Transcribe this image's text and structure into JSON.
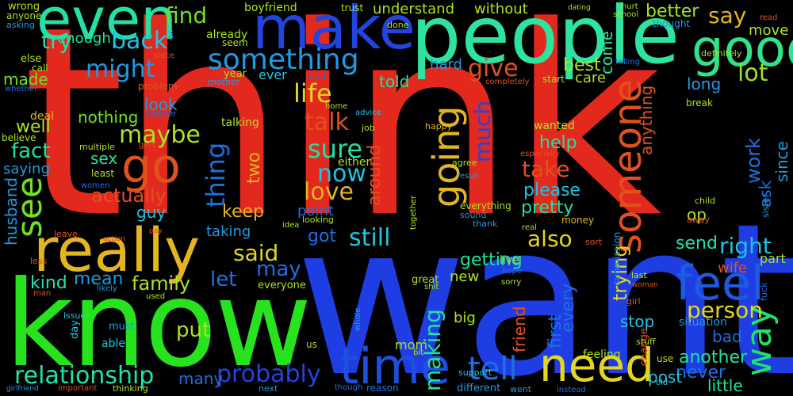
{
  "words": [
    {
      "text": "think",
      "color": "#e3281e"
    },
    {
      "text": "want",
      "color": "#1e3ee3"
    },
    {
      "text": "know",
      "color": "#27e31e"
    },
    {
      "text": "people",
      "color": "#2ee3a0"
    },
    {
      "text": "even",
      "color": "#22e0a6"
    },
    {
      "text": "make",
      "color": "#2244e0"
    },
    {
      "text": "good",
      "color": "#2ee38a"
    },
    {
      "text": "really",
      "color": "#e3b51e"
    },
    {
      "text": "go",
      "color": "#e3501e"
    },
    {
      "text": "time",
      "color": "#1e4fe3"
    },
    {
      "text": "need",
      "color": "#e3d71e"
    },
    {
      "text": "feel",
      "color": "#1e5be3"
    },
    {
      "text": "going",
      "color": "#e3b51e"
    },
    {
      "text": "someone",
      "color": "#e3501e"
    },
    {
      "text": "something",
      "color": "#1e9be3"
    },
    {
      "text": "tell",
      "color": "#1e6fe3"
    },
    {
      "text": "see",
      "color": "#6ee31e"
    },
    {
      "text": "way",
      "color": "#1ee36b"
    },
    {
      "text": "back",
      "color": "#1ec4e3"
    },
    {
      "text": "might",
      "color": "#1e9be3"
    },
    {
      "text": "maybe",
      "color": "#aee31e"
    },
    {
      "text": "find",
      "color": "#6ee31e"
    },
    {
      "text": "try",
      "color": "#1ee3b0"
    },
    {
      "text": "say",
      "color": "#e3b51e"
    },
    {
      "text": "better",
      "color": "#9ae31e"
    },
    {
      "text": "relationship",
      "color": "#1ee3b0"
    },
    {
      "text": "probably",
      "color": "#2244e0"
    },
    {
      "text": "love",
      "color": "#e3b51e"
    },
    {
      "text": "sure",
      "color": "#1ee3a0"
    },
    {
      "text": "talk",
      "color": "#e3501e"
    },
    {
      "text": "life",
      "color": "#e3d71e"
    },
    {
      "text": "now",
      "color": "#1ec4e3"
    },
    {
      "text": "take",
      "color": "#e3501e"
    },
    {
      "text": "much",
      "color": "#2244e0"
    },
    {
      "text": "give",
      "color": "#e3501e"
    },
    {
      "text": "lot",
      "color": "#9ae31e"
    },
    {
      "text": "said",
      "color": "#e3d71e"
    },
    {
      "text": "right",
      "color": "#1ec4e3"
    },
    {
      "text": "person",
      "color": "#e3d71e"
    },
    {
      "text": "still",
      "color": "#1ec4e3"
    },
    {
      "text": "got",
      "color": "#1e6fe3"
    },
    {
      "text": "also",
      "color": "#e3d71e"
    },
    {
      "text": "getting",
      "color": "#1ee3a0"
    },
    {
      "text": "made",
      "color": "#6ee31e"
    },
    {
      "text": "fact",
      "color": "#1ee3a0"
    },
    {
      "text": "well",
      "color": "#aee31e"
    },
    {
      "text": "actually",
      "color": "#e3501e"
    },
    {
      "text": "kind",
      "color": "#1ee3b0"
    },
    {
      "text": "mean",
      "color": "#1e9be3"
    },
    {
      "text": "family",
      "color": "#aee31e"
    },
    {
      "text": "let",
      "color": "#1e6fe3"
    },
    {
      "text": "may",
      "color": "#1e6fe3"
    },
    {
      "text": "put",
      "color": "#aee31e"
    },
    {
      "text": "work",
      "color": "#1e6fe3"
    },
    {
      "text": "told",
      "color": "#1ee3a0"
    },
    {
      "text": "thing",
      "color": "#1e6fe3"
    },
    {
      "text": "two",
      "color": "#e3b51e"
    },
    {
      "text": "help",
      "color": "#1ee3a0"
    },
    {
      "text": "please",
      "color": "#1ec4e3"
    },
    {
      "text": "pretty",
      "color": "#1ee3a0"
    },
    {
      "text": "keep",
      "color": "#e3b51e"
    },
    {
      "text": "never",
      "color": "#1e6fe3"
    },
    {
      "text": "another",
      "color": "#1ee3a0"
    },
    {
      "text": "bad",
      "color": "#1e6fe3"
    },
    {
      "text": "stop",
      "color": "#1ec4e3"
    },
    {
      "text": "trying",
      "color": "#e3d71e"
    },
    {
      "text": "every",
      "color": "#1e6fe3"
    },
    {
      "text": "first",
      "color": "#1e6fe3"
    },
    {
      "text": "friend",
      "color": "#e3501e"
    },
    {
      "text": "post",
      "color": "#1ec4e3"
    },
    {
      "text": "little",
      "color": "#1ee3a0"
    },
    {
      "text": "many",
      "color": "#1e6fe3"
    },
    {
      "text": "making",
      "color": "#1ee3a0"
    },
    {
      "text": "nothing",
      "color": "#6ee31e"
    },
    {
      "text": "look",
      "color": "#1e9be3"
    },
    {
      "text": "sex",
      "color": "#1ee3a0"
    },
    {
      "text": "guy",
      "color": "#1ec4e3"
    },
    {
      "text": "saying",
      "color": "#1e9be3"
    },
    {
      "text": "husband",
      "color": "#1e9be3"
    },
    {
      "text": "around",
      "color": "#e3501e"
    },
    {
      "text": "ask",
      "color": "#1e6fe3"
    },
    {
      "text": "since",
      "color": "#1e9be3"
    },
    {
      "text": "send",
      "color": "#1ee3b0"
    },
    {
      "text": "op",
      "color": "#aee31e"
    },
    {
      "text": "wife",
      "color": "#e3501e"
    },
    {
      "text": "new",
      "color": "#aee31e"
    },
    {
      "text": "big",
      "color": "#aee31e"
    },
    {
      "text": "mom",
      "color": "#aee31e"
    },
    {
      "text": "anything",
      "color": "#e3501e"
    },
    {
      "text": "long",
      "color": "#1e9be3"
    },
    {
      "text": "best",
      "color": "#aee31e"
    },
    {
      "text": "care",
      "color": "#aee31e"
    },
    {
      "text": "come",
      "color": "#1ee3a0"
    },
    {
      "text": "without",
      "color": "#aee31e"
    },
    {
      "text": "understand",
      "color": "#aee31e"
    },
    {
      "text": "enough",
      "color": "#1ee3a0"
    },
    {
      "text": "hard",
      "color": "#1e9be3"
    },
    {
      "text": "taking",
      "color": "#1e9be3"
    },
    {
      "text": "point",
      "color": "#1e6fe3"
    },
    {
      "text": "ever",
      "color": "#1ec4e3"
    },
    {
      "text": "move",
      "color": "#aee31e"
    },
    {
      "text": "part",
      "color": "#aee31e"
    },
    {
      "text": "wanted",
      "color": "#aee31e"
    },
    {
      "text": "boyfriend",
      "color": "#aee31e"
    },
    {
      "text": "already",
      "color": "#aee31e"
    },
    {
      "text": "year",
      "color": "#aee31e"
    },
    {
      "text": "talking",
      "color": "#aee31e"
    },
    {
      "text": "live",
      "color": "#aee31e"
    },
    {
      "text": "situation",
      "color": "#1e9be3"
    },
    {
      "text": "feeling",
      "color": "#aee31e"
    },
    {
      "text": "everything",
      "color": "#aee31e"
    },
    {
      "text": "either",
      "color": "#aee31e"
    },
    {
      "text": "deal",
      "color": "#e3b51e"
    },
    {
      "text": "believe",
      "color": "#aee31e"
    },
    {
      "text": "least",
      "color": "#aee31e"
    },
    {
      "text": "must",
      "color": "#1e9be3"
    },
    {
      "text": "able",
      "color": "#1ec4e3"
    },
    {
      "text": "day",
      "color": "#1ec4e3"
    },
    {
      "text": "us",
      "color": "#aee31e"
    },
    {
      "text": "great",
      "color": "#aee31e"
    },
    {
      "text": "everyone",
      "color": "#aee31e"
    },
    {
      "text": "change",
      "color": "#e3501e"
    },
    {
      "text": "use",
      "color": "#aee31e"
    },
    {
      "text": "different",
      "color": "#1e9be3"
    },
    {
      "text": "support",
      "color": "#1ec4e3"
    },
    {
      "text": "trust",
      "color": "#aee31e"
    },
    {
      "text": "done",
      "color": "#aee31e"
    },
    {
      "text": "wrong",
      "color": "#aee31e"
    },
    {
      "text": "anyone",
      "color": "#aee31e"
    },
    {
      "text": "asking",
      "color": "#1e9be3"
    },
    {
      "text": "else",
      "color": "#aee31e"
    },
    {
      "text": "call",
      "color": "#aee31e"
    },
    {
      "text": "whether",
      "color": "#1e6fe3"
    },
    {
      "text": "seem",
      "color": "#aee31e"
    },
    {
      "text": "end",
      "color": "#1e6fe3"
    },
    {
      "text": "mother",
      "color": "#1e9be3"
    },
    {
      "text": "problem",
      "color": "#e3501e"
    },
    {
      "text": "place",
      "color": "#e3501e"
    },
    {
      "text": "partner",
      "color": "#1e6fe3"
    },
    {
      "text": "home",
      "color": "#aee31e"
    },
    {
      "text": "advice",
      "color": "#1ec4e3"
    },
    {
      "text": "job",
      "color": "#aee31e"
    },
    {
      "text": "happy",
      "color": "#e3b51e"
    },
    {
      "text": "especially",
      "color": "#e3501e"
    },
    {
      "text": "agree",
      "color": "#aee31e"
    },
    {
      "text": "result",
      "color": "#1e9be3"
    },
    {
      "text": "together",
      "color": "#aee31e"
    },
    {
      "text": "sound",
      "color": "#1e9be3"
    },
    {
      "text": "thank",
      "color": "#1e9be3"
    },
    {
      "text": "money",
      "color": "#e3b51e"
    },
    {
      "text": "real",
      "color": "#aee31e"
    },
    {
      "text": "sort",
      "color": "#e3501e"
    },
    {
      "text": "submission",
      "color": "#1e9be3"
    },
    {
      "text": "child",
      "color": "#aee31e"
    },
    {
      "text": "away",
      "color": "#e3501e"
    },
    {
      "text": "sister",
      "color": "#1e9be3"
    },
    {
      "text": "last",
      "color": "#aee31e"
    },
    {
      "text": "woman",
      "color": "#e3501e"
    },
    {
      "text": "girl",
      "color": "#e3501e"
    },
    {
      "text": "fuck",
      "color": "#1e6fe3"
    },
    {
      "text": "stuff",
      "color": "#aee31e"
    },
    {
      "text": "old",
      "color": "#1ec4e3"
    },
    {
      "text": "instead",
      "color": "#1e6fe3"
    },
    {
      "text": "went",
      "color": "#1e9be3"
    },
    {
      "text": "though",
      "color": "#1e6fe3"
    },
    {
      "text": "reason",
      "color": "#1e6fe3"
    },
    {
      "text": "next",
      "color": "#1e9be3"
    },
    {
      "text": "thinking",
      "color": "#aee31e"
    },
    {
      "text": "important",
      "color": "#e3501e"
    },
    {
      "text": "girlfriend",
      "color": "#1e9be3"
    },
    {
      "text": "used",
      "color": "#aee31e"
    },
    {
      "text": "man",
      "color": "#e3501e"
    },
    {
      "text": "issue",
      "color": "#1ec4e3"
    },
    {
      "text": "less",
      "color": "#e3501e"
    },
    {
      "text": "leave",
      "color": "#e3501e"
    },
    {
      "text": "action",
      "color": "#e3501e"
    },
    {
      "text": "pay",
      "color": "#e3501e"
    },
    {
      "text": "likely",
      "color": "#1e9be3"
    },
    {
      "text": "sorry",
      "color": "#aee31e"
    },
    {
      "text": "hope",
      "color": "#1e6fe3"
    },
    {
      "text": "shit",
      "color": "#aee31e"
    },
    {
      "text": "whole",
      "color": "#1e9be3"
    },
    {
      "text": "bit",
      "color": "#aee31e"
    },
    {
      "text": "women",
      "color": "#1e6fe3"
    },
    {
      "text": "multiple",
      "color": "#aee31e"
    },
    {
      "text": "gets",
      "color": "#e3501e"
    },
    {
      "text": "idea",
      "color": "#aee31e"
    },
    {
      "text": "looking",
      "color": "#aee31e"
    },
    {
      "text": "completely",
      "color": "#e3501e"
    },
    {
      "text": "start",
      "color": "#aee31e"
    },
    {
      "text": "telling",
      "color": "#1e6fe3"
    },
    {
      "text": "hurt",
      "color": "#aee31e"
    },
    {
      "text": "school",
      "color": "#aee31e"
    },
    {
      "text": "dating",
      "color": "#aee31e"
    },
    {
      "text": "thought",
      "color": "#1e9be3"
    },
    {
      "text": "definitely",
      "color": "#aee31e"
    },
    {
      "text": "read",
      "color": "#e3501e"
    },
    {
      "text": "break",
      "color": "#aee31e"
    },
    {
      "text": "ex",
      "color": "#1e9be3"
    }
  ]
}
